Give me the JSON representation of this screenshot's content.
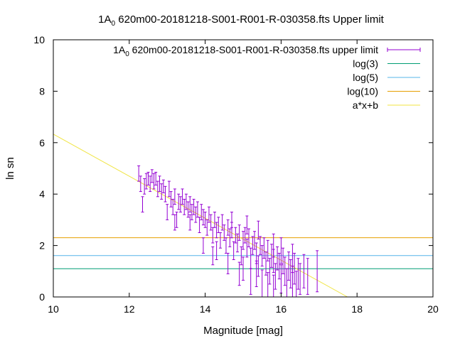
{
  "chart_data": {
    "type": "scatter",
    "title_prefix": "1A",
    "title_sub": "0",
    "title_rest": "620m00-20181218-S001-R001-R-030358.fts Upper limit",
    "xlabel": "Magnitude [mag]",
    "ylabel": "ln sn",
    "xlim": [
      10,
      20
    ],
    "ylim": [
      0,
      10
    ],
    "xticks": [
      "10",
      "12",
      "14",
      "16",
      "18",
      "20"
    ],
    "yticks": [
      "0",
      "2",
      "4",
      "6",
      "8",
      "10"
    ],
    "grid": false,
    "legend_position": "top-right",
    "legend": [
      {
        "prefix": "1A",
        "sub": "0",
        "rest": "620m00-20181218-S001-R001-R-030358.fts upper limit",
        "color": "#9400d3"
      },
      {
        "label": "log(3)",
        "color": "#009e73"
      },
      {
        "label": "log(5)",
        "color": "#56b4e9"
      },
      {
        "label": "log(10)",
        "color": "#e69f00"
      },
      {
        "label": "a*x+b",
        "color": "#f0e442"
      }
    ],
    "hlines": [
      {
        "name": "log(3)",
        "y": 1.0986,
        "color": "#009e73"
      },
      {
        "name": "log(5)",
        "y": 1.6094,
        "color": "#56b4e9"
      },
      {
        "name": "log(10)",
        "y": 2.3026,
        "color": "#e69f00"
      }
    ],
    "fit_line": {
      "name": "a*x+b",
      "a": -0.817,
      "b": 14.5,
      "color": "#f0e442"
    },
    "scatter_color": "#9400d3",
    "points": [
      [
        12.25,
        4.8,
        0.3
      ],
      [
        12.3,
        4.4,
        0.3
      ],
      [
        12.35,
        3.6,
        0.3
      ],
      [
        12.4,
        4.3,
        0.3
      ],
      [
        12.45,
        4.5,
        0.3
      ],
      [
        12.5,
        4.6,
        0.25
      ],
      [
        12.55,
        4.4,
        0.3
      ],
      [
        12.6,
        4.7,
        0.25
      ],
      [
        12.65,
        4.5,
        0.3
      ],
      [
        12.7,
        4.6,
        0.25
      ],
      [
        12.75,
        4.2,
        0.3
      ],
      [
        12.8,
        4.4,
        0.3
      ],
      [
        12.85,
        4.1,
        0.3
      ],
      [
        12.9,
        4.3,
        0.25
      ],
      [
        12.95,
        4.0,
        0.3
      ],
      [
        13.0,
        3.3,
        0.3
      ],
      [
        13.05,
        4.2,
        0.3
      ],
      [
        13.1,
        3.8,
        0.3
      ],
      [
        13.15,
        3.5,
        0.3
      ],
      [
        13.2,
        3.9,
        0.3
      ],
      [
        13.25,
        3.0,
        0.3
      ],
      [
        13.3,
        3.7,
        0.3
      ],
      [
        13.35,
        3.6,
        0.3
      ],
      [
        13.4,
        3.9,
        0.3
      ],
      [
        13.45,
        3.5,
        0.3
      ],
      [
        13.5,
        3.7,
        0.3
      ],
      [
        13.55,
        3.4,
        0.3
      ],
      [
        13.6,
        3.6,
        0.3
      ],
      [
        13.65,
        3.3,
        0.3
      ],
      [
        13.7,
        3.5,
        0.3
      ],
      [
        13.75,
        3.2,
        0.3
      ],
      [
        13.8,
        3.4,
        0.3
      ],
      [
        13.85,
        2.8,
        0.3
      ],
      [
        13.9,
        3.3,
        0.3
      ],
      [
        13.95,
        3.1,
        0.3
      ],
      [
        14.0,
        3.0,
        0.3
      ],
      [
        14.05,
        2.7,
        0.3
      ],
      [
        14.1,
        3.2,
        0.3
      ],
      [
        14.15,
        2.9,
        0.3
      ],
      [
        14.2,
        2.4,
        0.3
      ],
      [
        14.25,
        3.0,
        0.3
      ],
      [
        14.3,
        2.6,
        0.3
      ],
      [
        14.35,
        2.8,
        0.3
      ],
      [
        14.4,
        2.2,
        0.3
      ],
      [
        14.45,
        2.9,
        0.3
      ],
      [
        14.5,
        2.5,
        0.3
      ],
      [
        14.55,
        2.0,
        0.3
      ],
      [
        14.6,
        2.7,
        0.3
      ],
      [
        14.65,
        2.3,
        0.35
      ],
      [
        14.7,
        2.6,
        0.3
      ],
      [
        14.75,
        1.8,
        0.35
      ],
      [
        14.8,
        2.4,
        0.3
      ],
      [
        14.85,
        2.1,
        0.35
      ],
      [
        14.9,
        2.5,
        0.3
      ],
      [
        14.95,
        1.6,
        0.35
      ],
      [
        15.0,
        2.2,
        0.35
      ],
      [
        15.05,
        2.4,
        0.3
      ],
      [
        15.1,
        1.9,
        0.35
      ],
      [
        15.15,
        2.3,
        0.35
      ],
      [
        15.2,
        1.5,
        0.4
      ],
      [
        15.25,
        2.0,
        0.35
      ],
      [
        15.3,
        2.2,
        0.35
      ],
      [
        15.35,
        1.7,
        0.4
      ],
      [
        15.4,
        1.2,
        0.4
      ],
      [
        15.45,
        2.0,
        0.35
      ],
      [
        15.5,
        1.6,
        0.4
      ],
      [
        15.55,
        1.9,
        0.4
      ],
      [
        15.6,
        1.3,
        0.45
      ],
      [
        15.65,
        1.8,
        0.4
      ],
      [
        15.7,
        1.0,
        0.5
      ],
      [
        15.75,
        1.6,
        0.45
      ],
      [
        15.8,
        1.4,
        0.45
      ],
      [
        15.85,
        0.8,
        0.5
      ],
      [
        15.9,
        1.5,
        0.45
      ],
      [
        15.95,
        1.2,
        0.5
      ],
      [
        16.0,
        0.7,
        0.55
      ],
      [
        16.05,
        1.4,
        0.5
      ],
      [
        16.1,
        1.0,
        0.55
      ],
      [
        16.15,
        0.5,
        0.6
      ],
      [
        16.2,
        1.2,
        0.55
      ],
      [
        16.25,
        0.9,
        0.55
      ],
      [
        16.3,
        0.6,
        0.6
      ],
      [
        16.35,
        1.1,
        0.6
      ],
      [
        16.4,
        0.4,
        0.6
      ],
      [
        16.45,
        0.9,
        0.6
      ],
      [
        16.5,
        0.7,
        0.6
      ],
      [
        16.6,
        1.0,
        0.65
      ],
      [
        16.7,
        0.8,
        0.7
      ],
      [
        16.95,
        1.0,
        0.8
      ],
      [
        14.3,
        1.8,
        0.35
      ],
      [
        14.6,
        1.3,
        0.4
      ],
      [
        14.9,
        0.9,
        0.45
      ],
      [
        15.2,
        0.6,
        0.5
      ],
      [
        15.5,
        0.5,
        0.55
      ],
      [
        15.8,
        0.3,
        0.55
      ],
      [
        13.6,
        2.9,
        0.3
      ],
      [
        13.2,
        2.9,
        0.3
      ],
      [
        13.95,
        2.0,
        0.3
      ],
      [
        14.2,
        1.6,
        0.35
      ],
      [
        15.0,
        1.1,
        0.45
      ],
      [
        15.35,
        0.9,
        0.5
      ],
      [
        15.65,
        0.4,
        0.55
      ],
      [
        16.0,
        1.8,
        0.5
      ],
      [
        16.3,
        1.5,
        0.55
      ],
      [
        15.8,
        2.0,
        0.45
      ],
      [
        15.1,
        2.8,
        0.35
      ],
      [
        14.7,
        3.0,
        0.3
      ],
      [
        15.4,
        2.6,
        0.35
      ]
    ]
  }
}
